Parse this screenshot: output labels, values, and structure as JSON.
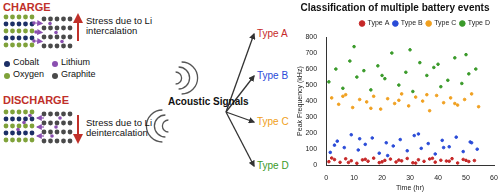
{
  "diagram": {
    "charge": {
      "title": "CHARGE",
      "caption": "Stress due to Li intercalation"
    },
    "discharge": {
      "title": "DISCHARGE",
      "caption": "Stress due to Li deintercalation"
    },
    "legend": [
      {
        "label": "Cobalt",
        "color": "#1c2f66"
      },
      {
        "label": "Lithium",
        "color": "#8a4fb0"
      },
      {
        "label": "Oxygen",
        "color": "#7fa23a"
      },
      {
        "label": "Graphite",
        "color": "#4a4a4a"
      }
    ],
    "center_label": "Acoustic Signals",
    "classes": [
      {
        "label": "Type A",
        "color": "#c62828"
      },
      {
        "label": "Type B",
        "color": "#2a4bd7"
      },
      {
        "label": "Type C",
        "color": "#f0a020"
      },
      {
        "label": "Type D",
        "color": "#3a9a2a"
      }
    ]
  },
  "chart_data": {
    "type": "scatter",
    "title": "Classification of multiple battery events",
    "x_label": "Time (hr)",
    "y_label": "Peak Frequency (kHz)",
    "xlim": [
      0,
      60
    ],
    "xticks": [
      0,
      10,
      20,
      30,
      40,
      50,
      60
    ],
    "ylim": [
      0,
      800
    ],
    "yticks": [
      0,
      100,
      200,
      300,
      400,
      500,
      600,
      700,
      800
    ],
    "grid": false,
    "legend": "top-right",
    "series": [
      {
        "name": "Type A",
        "color": "#c62828",
        "x": [
          1,
          3,
          5,
          7,
          9,
          11,
          13,
          15,
          17,
          19,
          21,
          23,
          25,
          27,
          29,
          31,
          33,
          35,
          37,
          39,
          41,
          43,
          45,
          47,
          49,
          51,
          53,
          2,
          8,
          14,
          20,
          26,
          32,
          38,
          44,
          50
        ],
        "values": [
          22,
          35,
          18,
          40,
          28,
          12,
          33,
          25,
          44,
          16,
          30,
          38,
          20,
          27,
          42,
          15,
          34,
          24,
          39,
          19,
          31,
          26,
          41,
          14,
          36,
          23,
          29,
          45,
          17,
          37,
          21,
          32,
          13,
          43,
          25,
          30
        ]
      },
      {
        "name": "Type B",
        "color": "#2a4bd7",
        "x": [
          1.5,
          4,
          6.5,
          9,
          11.5,
          14,
          16.5,
          19,
          21.5,
          24,
          26.5,
          29,
          31.5,
          34,
          36.5,
          39,
          41.5,
          44,
          46.5,
          49,
          51.5,
          54,
          3,
          12,
          22,
          33,
          42,
          52
        ],
        "values": [
          80,
          150,
          110,
          190,
          95,
          130,
          170,
          75,
          140,
          120,
          160,
          90,
          185,
          105,
          135,
          70,
          155,
          115,
          175,
          85,
          145,
          100,
          125,
          165,
          60,
          195,
          110,
          140
        ]
      },
      {
        "name": "Type C",
        "color": "#f0a020",
        "x": [
          2,
          4.5,
          7,
          9.5,
          12,
          14.5,
          17,
          19.5,
          22,
          24.5,
          27,
          29.5,
          32,
          34.5,
          37,
          39.5,
          42,
          44.5,
          47,
          49.5,
          52,
          54.5,
          6,
          16,
          26,
          36,
          46
        ],
        "values": [
          420,
          380,
          440,
          360,
          410,
          395,
          430,
          350,
          415,
          385,
          445,
          370,
          425,
          400,
          340,
          435,
          390,
          420,
          375,
          410,
          445,
          365,
          430,
          355,
          405,
          440,
          385
        ]
      },
      {
        "name": "Type D",
        "color": "#3a9a2a",
        "x": [
          1,
          3.5,
          6,
          8.5,
          11,
          13.5,
          16,
          18.5,
          21,
          23.5,
          26,
          28.5,
          31,
          33.5,
          36,
          38.5,
          41,
          43.5,
          46,
          48.5,
          51,
          53.5,
          10,
          30,
          50,
          20,
          40
        ],
        "values": [
          520,
          600,
          480,
          650,
          550,
          590,
          470,
          620,
          540,
          700,
          500,
          580,
          460,
          640,
          560,
          610,
          490,
          530,
          670,
          510,
          570,
          600,
          740,
          720,
          690,
          560,
          630
        ]
      }
    ]
  }
}
